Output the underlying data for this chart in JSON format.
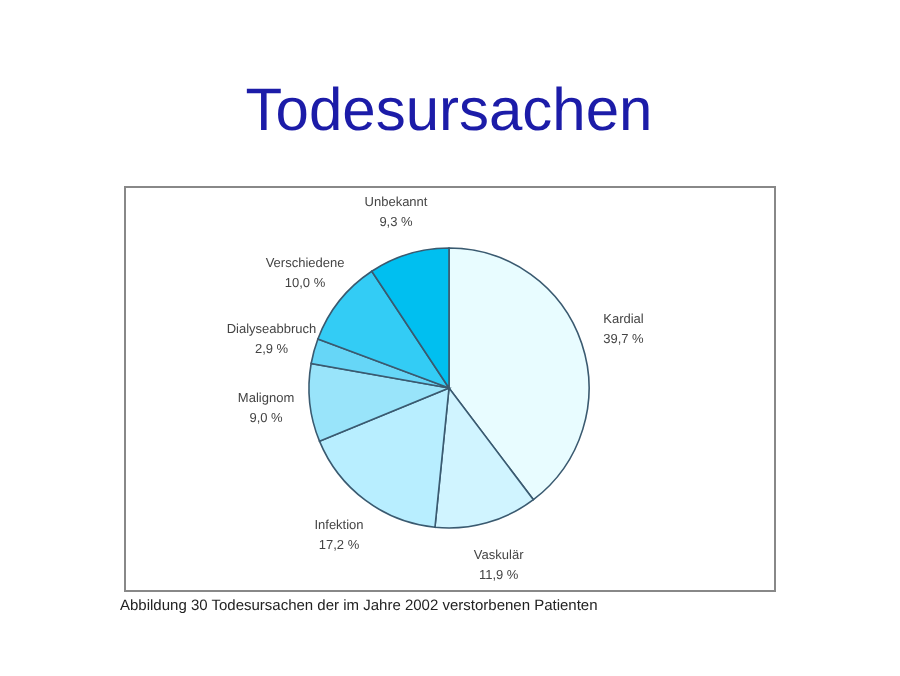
{
  "chart_data": {
    "type": "pie",
    "title": "Todesursachen",
    "categories": [
      "Kardial",
      "Vaskulär",
      "Infektion",
      "Malignom",
      "Dialyseabbruch",
      "Verschiedene",
      "Unbekannt"
    ],
    "values": [
      39.7,
      11.9,
      17.2,
      9.0,
      2.9,
      10.0,
      9.3
    ],
    "value_labels": [
      "39,7 %",
      "11,9 %",
      "17,2 %",
      "9,0 %",
      "2,9 %",
      "10,0 %",
      "9,3 %"
    ],
    "colors": [
      "#e8fcff",
      "#d0f4ff",
      "#b8eeff",
      "#99e4fa",
      "#66d6f7",
      "#33ccf5",
      "#00bff0"
    ],
    "annotations": [
      "Abbildung 30  Todesursachen der im Jahre 2002 verstorbenen Patienten"
    ]
  }
}
